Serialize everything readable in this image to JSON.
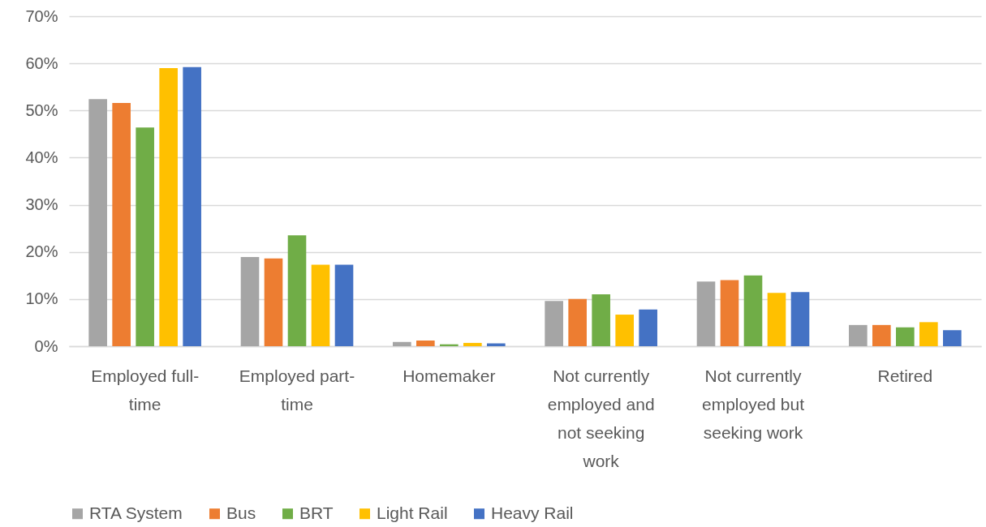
{
  "chart_data": {
    "type": "bar",
    "categories": [
      "Employed full-time",
      "Employed part-time",
      "Homemaker",
      "Not currently employed and not seeking work",
      "Not currently employed but seeking work",
      "Retired"
    ],
    "series": [
      {
        "name": "RTA System",
        "color": "#a5a5a5",
        "values": [
          52.4,
          18.9,
          0.9,
          9.6,
          13.7,
          4.5
        ]
      },
      {
        "name": "Bus",
        "color": "#ed7d31",
        "values": [
          51.6,
          18.6,
          1.2,
          10.0,
          14.0,
          4.5
        ]
      },
      {
        "name": "BRT",
        "color": "#70ad47",
        "values": [
          46.4,
          23.5,
          0.4,
          11.0,
          15.0,
          4.0
        ]
      },
      {
        "name": "Light Rail",
        "color": "#ffc000",
        "values": [
          59.0,
          17.3,
          0.7,
          6.7,
          11.3,
          5.1
        ]
      },
      {
        "name": "Heavy Rail",
        "color": "#4472c4",
        "values": [
          59.2,
          17.3,
          0.6,
          7.8,
          11.5,
          3.4
        ]
      }
    ],
    "ylim": [
      0,
      70
    ],
    "yticks": [
      {
        "value": 0,
        "label": "0%"
      },
      {
        "value": 10,
        "label": "10%"
      },
      {
        "value": 20,
        "label": "20%"
      },
      {
        "value": 30,
        "label": "30%"
      },
      {
        "value": 40,
        "label": "40%"
      },
      {
        "value": 50,
        "label": "50%"
      },
      {
        "value": 60,
        "label": "60%"
      },
      {
        "value": 70,
        "label": "70%"
      }
    ],
    "grid": "y",
    "legend": "bottom"
  }
}
